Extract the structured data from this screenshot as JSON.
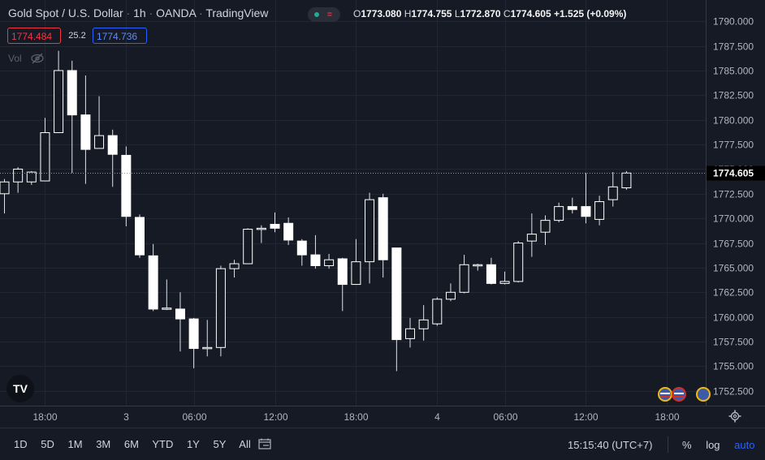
{
  "header": {
    "symbol": "Gold Spot / U.S. Dollar",
    "interval": "1h",
    "exchange": "OANDA",
    "source": "TradingView",
    "open_label": "O",
    "open": "1773.080",
    "high_label": "H",
    "high": "1774.755",
    "low_label": "L",
    "low": "1772.870",
    "close_label": "C",
    "close": "1774.605",
    "change": "+1.525 (+0.09%)"
  },
  "trade": {
    "sell": "1774.484",
    "spread": "25.2",
    "buy": "1774.736"
  },
  "volume_label": "Vol",
  "logo_text": "TV",
  "timeframes": [
    "1D",
    "5D",
    "1M",
    "3M",
    "6M",
    "YTD",
    "1Y",
    "5Y",
    "All"
  ],
  "clock": "15:15:40 (UTC+7)",
  "options": {
    "percent": "%",
    "log": "log",
    "auto": "auto"
  },
  "colors": {
    "background": "#161a25",
    "grid": "#232632",
    "candle_up": "#ffffff",
    "candle_down": "#ffffff",
    "accent": "#2962ff",
    "sell": "#f23645"
  },
  "chart_data": {
    "type": "candlestick",
    "symbol": "XAUUSD",
    "ylim": [
      1751.0,
      1791.5
    ],
    "price_ticks": [
      "1790.000",
      "1787.500",
      "1785.000",
      "1782.500",
      "1780.000",
      "1777.500",
      "1775.000",
      "1772.500",
      "1770.000",
      "1767.500",
      "1765.000",
      "1762.500",
      "1760.000",
      "1757.500",
      "1755.000",
      "1752.500"
    ],
    "time_ticks": [
      "18:00",
      "3",
      "06:00",
      "12:00",
      "18:00",
      "4",
      "06:00",
      "12:00",
      "18:00"
    ],
    "current_price": "1774.605",
    "candles": [
      {
        "o": 1772.5,
        "h": 1774.0,
        "l": 1770.5,
        "c": 1773.7
      },
      {
        "o": 1773.7,
        "h": 1775.2,
        "l": 1772.6,
        "c": 1775.0
      },
      {
        "o": 1773.7,
        "h": 1774.8,
        "l": 1773.4,
        "c": 1774.7
      },
      {
        "o": 1773.8,
        "h": 1780.2,
        "l": 1773.8,
        "c": 1778.7
      },
      {
        "o": 1778.7,
        "h": 1787.0,
        "l": 1778.7,
        "c": 1785.0
      },
      {
        "o": 1785.0,
        "h": 1786.0,
        "l": 1774.6,
        "c": 1780.5
      },
      {
        "o": 1780.5,
        "h": 1784.5,
        "l": 1773.5,
        "c": 1777.0
      },
      {
        "o": 1777.1,
        "h": 1782.4,
        "l": 1777.1,
        "c": 1778.4
      },
      {
        "o": 1778.4,
        "h": 1779.0,
        "l": 1773.2,
        "c": 1776.5
      },
      {
        "o": 1776.4,
        "h": 1777.3,
        "l": 1769.2,
        "c": 1770.2
      },
      {
        "o": 1770.1,
        "h": 1770.4,
        "l": 1766.0,
        "c": 1766.3
      },
      {
        "o": 1766.2,
        "h": 1767.4,
        "l": 1760.6,
        "c": 1760.8
      },
      {
        "o": 1760.9,
        "h": 1763.8,
        "l": 1760.7,
        "c": 1760.9
      },
      {
        "o": 1760.8,
        "h": 1762.5,
        "l": 1756.5,
        "c": 1759.8
      },
      {
        "o": 1759.8,
        "h": 1759.9,
        "l": 1754.8,
        "c": 1756.8
      },
      {
        "o": 1756.8,
        "h": 1759.7,
        "l": 1756.0,
        "c": 1756.9
      },
      {
        "o": 1756.9,
        "h": 1765.2,
        "l": 1756.0,
        "c": 1764.9
      },
      {
        "o": 1764.9,
        "h": 1765.8,
        "l": 1764.0,
        "c": 1765.4
      },
      {
        "o": 1765.4,
        "h": 1769.0,
        "l": 1765.4,
        "c": 1768.9
      },
      {
        "o": 1768.9,
        "h": 1769.3,
        "l": 1767.5,
        "c": 1769.0
      },
      {
        "o": 1769.4,
        "h": 1770.6,
        "l": 1768.6,
        "c": 1769.0
      },
      {
        "o": 1769.5,
        "h": 1770.1,
        "l": 1767.3,
        "c": 1767.8
      },
      {
        "o": 1767.7,
        "h": 1767.9,
        "l": 1765.2,
        "c": 1766.3
      },
      {
        "o": 1766.3,
        "h": 1768.3,
        "l": 1764.9,
        "c": 1765.2
      },
      {
        "o": 1765.2,
        "h": 1766.4,
        "l": 1764.9,
        "c": 1765.8
      },
      {
        "o": 1765.9,
        "h": 1766.0,
        "l": 1760.6,
        "c": 1763.3
      },
      {
        "o": 1763.3,
        "h": 1767.9,
        "l": 1763.3,
        "c": 1765.6
      },
      {
        "o": 1765.6,
        "h": 1772.6,
        "l": 1763.4,
        "c": 1771.9
      },
      {
        "o": 1772.1,
        "h": 1772.5,
        "l": 1764.0,
        "c": 1765.8
      },
      {
        "o": 1767.0,
        "h": 1767.0,
        "l": 1754.5,
        "c": 1757.7
      },
      {
        "o": 1757.8,
        "h": 1759.9,
        "l": 1756.9,
        "c": 1758.8
      },
      {
        "o": 1758.8,
        "h": 1761.2,
        "l": 1757.6,
        "c": 1759.7
      },
      {
        "o": 1759.3,
        "h": 1762.0,
        "l": 1759.1,
        "c": 1761.8
      },
      {
        "o": 1761.8,
        "h": 1763.4,
        "l": 1761.6,
        "c": 1762.5
      },
      {
        "o": 1762.5,
        "h": 1766.3,
        "l": 1762.4,
        "c": 1765.3
      },
      {
        "o": 1765.2,
        "h": 1765.4,
        "l": 1764.7,
        "c": 1765.3
      },
      {
        "o": 1765.3,
        "h": 1766.0,
        "l": 1763.3,
        "c": 1763.4
      },
      {
        "o": 1763.4,
        "h": 1764.6,
        "l": 1763.3,
        "c": 1763.6
      },
      {
        "o": 1763.6,
        "h": 1767.7,
        "l": 1763.5,
        "c": 1767.5
      },
      {
        "o": 1767.7,
        "h": 1770.5,
        "l": 1766.1,
        "c": 1768.4
      },
      {
        "o": 1768.6,
        "h": 1770.3,
        "l": 1767.3,
        "c": 1769.8
      },
      {
        "o": 1769.8,
        "h": 1771.6,
        "l": 1769.6,
        "c": 1771.2
      },
      {
        "o": 1771.2,
        "h": 1772.1,
        "l": 1770.5,
        "c": 1770.9
      },
      {
        "o": 1771.2,
        "h": 1774.6,
        "l": 1769.5,
        "c": 1770.2
      },
      {
        "o": 1769.9,
        "h": 1772.3,
        "l": 1769.3,
        "c": 1771.7
      },
      {
        "o": 1771.9,
        "h": 1774.7,
        "l": 1771.2,
        "c": 1773.2
      },
      {
        "o": 1773.1,
        "h": 1774.8,
        "l": 1772.9,
        "c": 1774.6
      }
    ],
    "time_tick_index": [
      3,
      9,
      14,
      20,
      26,
      32,
      37,
      43,
      49
    ]
  }
}
